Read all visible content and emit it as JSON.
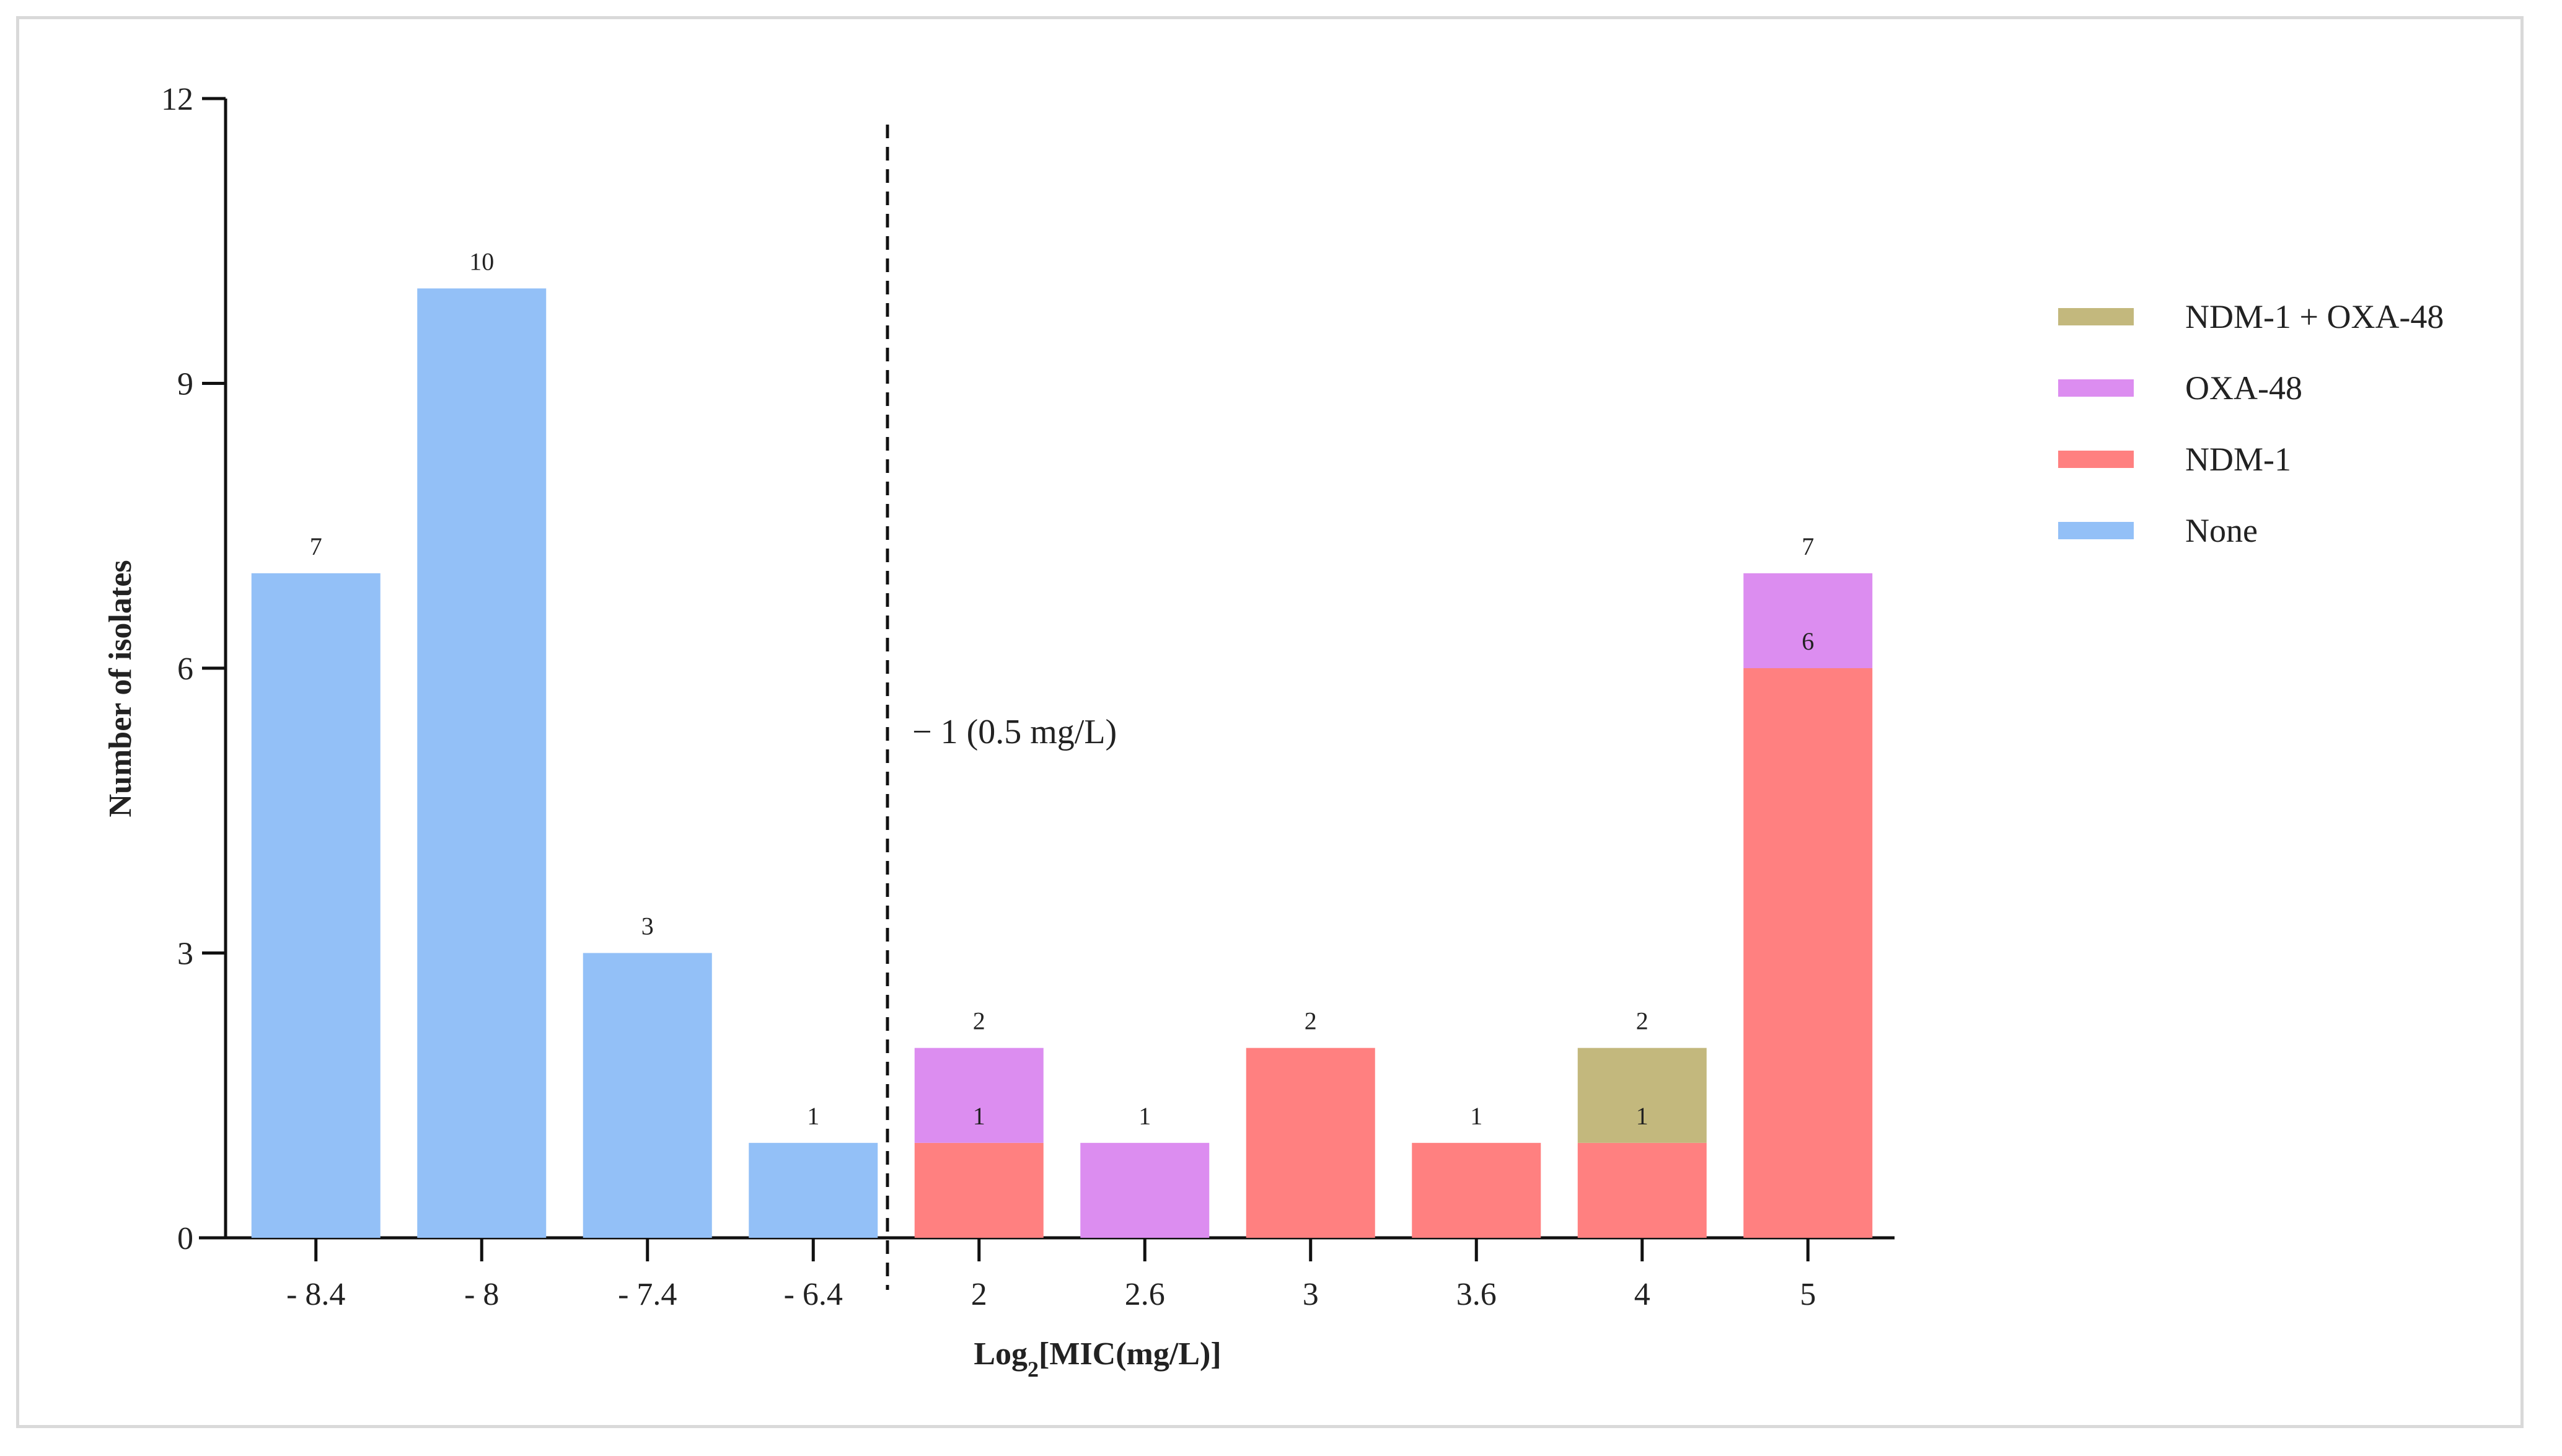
{
  "chart_data": {
    "type": "bar",
    "stacked": true,
    "title": "",
    "xlabel": "Log2[MIC(mg/L)]",
    "xlabel_parts": {
      "main": "Log",
      "subscript": "2",
      "rest": "[MIC(mg/L)]"
    },
    "ylabel": "Number of isolates",
    "ylim": [
      0,
      12
    ],
    "yticks": [
      "0",
      "3",
      "6",
      "9",
      "12"
    ],
    "categories": [
      "- 8.4",
      "- 8",
      "- 7.4",
      "- 6.4",
      "2",
      "2.6",
      "3",
      "3.6",
      "4",
      "5"
    ],
    "series": [
      {
        "name": "None",
        "color": "#93c0f7",
        "values": [
          7,
          10,
          3,
          1,
          0,
          0,
          0,
          0,
          0,
          0
        ]
      },
      {
        "name": "NDM-1",
        "color": "#ff8080",
        "values": [
          0,
          0,
          0,
          0,
          1,
          0,
          2,
          1,
          1,
          6
        ]
      },
      {
        "name": "OXA-48",
        "color": "#dc8df0",
        "values": [
          0,
          0,
          0,
          0,
          1,
          1,
          0,
          0,
          0,
          1
        ]
      },
      {
        "name": "NDM-1 + OXA-48",
        "color": "#c3b87d",
        "values": [
          0,
          0,
          0,
          0,
          0,
          0,
          0,
          0,
          1,
          0
        ]
      }
    ],
    "legend": [
      "NDM-1 + OXA-48",
      "OXA-48",
      "NDM-1",
      "None"
    ],
    "legend_position": "top-right",
    "data_labels": [
      {
        "category_index": 0,
        "value": 7,
        "text": "7"
      },
      {
        "category_index": 1,
        "value": 10,
        "text": "10"
      },
      {
        "category_index": 2,
        "value": 3,
        "text": "3"
      },
      {
        "category_index": 3,
        "value": 1,
        "text": "1"
      },
      {
        "category_index": 4,
        "value": 2,
        "text": "2"
      },
      {
        "category_index": 4,
        "value": 1,
        "text": "1"
      },
      {
        "category_index": 5,
        "value": 1,
        "text": "1"
      },
      {
        "category_index": 6,
        "value": 2,
        "text": "2"
      },
      {
        "category_index": 7,
        "value": 1,
        "text": "1"
      },
      {
        "category_index": 8,
        "value": 2,
        "text": "2"
      },
      {
        "category_index": 8,
        "value": 1,
        "text": "1"
      },
      {
        "category_index": 9,
        "value": 7,
        "text": "7"
      },
      {
        "category_index": 9,
        "value": 6,
        "text": "6"
      }
    ],
    "threshold": {
      "after_category_index": 3,
      "label": "− 1 (0.5 mg/L)",
      "style": "dashed"
    }
  }
}
